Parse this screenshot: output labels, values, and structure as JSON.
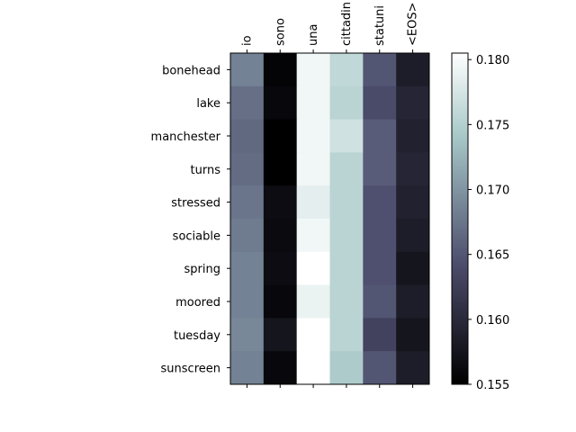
{
  "chart_data": {
    "type": "heatmap",
    "colormap": "bone",
    "columns": [
      "io",
      "sono",
      "una",
      "cittadin",
      "statuni",
      "<EOS>"
    ],
    "rows": [
      "bonehead",
      "lake",
      "manchester",
      "turns",
      "stressed",
      "sociable",
      "spring",
      "moored",
      "tuesday",
      "sunscreen"
    ],
    "values": [
      [
        0.1685,
        0.1555,
        0.1795,
        0.176,
        0.165,
        0.1585
      ],
      [
        0.167,
        0.156,
        0.1795,
        0.1755,
        0.164,
        0.1595
      ],
      [
        0.1665,
        0.155,
        0.1795,
        0.177,
        0.1655,
        0.159
      ],
      [
        0.1668,
        0.155,
        0.1795,
        0.1755,
        0.1655,
        0.1595
      ],
      [
        0.1675,
        0.1565,
        0.1785,
        0.1755,
        0.1645,
        0.159
      ],
      [
        0.168,
        0.1563,
        0.1795,
        0.1755,
        0.1645,
        0.1585
      ],
      [
        0.1685,
        0.1565,
        0.1805,
        0.1755,
        0.1645,
        0.1575
      ],
      [
        0.1685,
        0.156,
        0.179,
        0.1755,
        0.165,
        0.1585
      ],
      [
        0.169,
        0.1575,
        0.1805,
        0.1755,
        0.163,
        0.1575
      ],
      [
        0.1685,
        0.156,
        0.1805,
        0.1745,
        0.165,
        0.1585
      ]
    ],
    "colorbar": {
      "min": 0.155,
      "max": 0.1805,
      "ticks": [
        "0.155",
        "0.160",
        "0.165",
        "0.170",
        "0.175",
        "0.180"
      ]
    }
  }
}
